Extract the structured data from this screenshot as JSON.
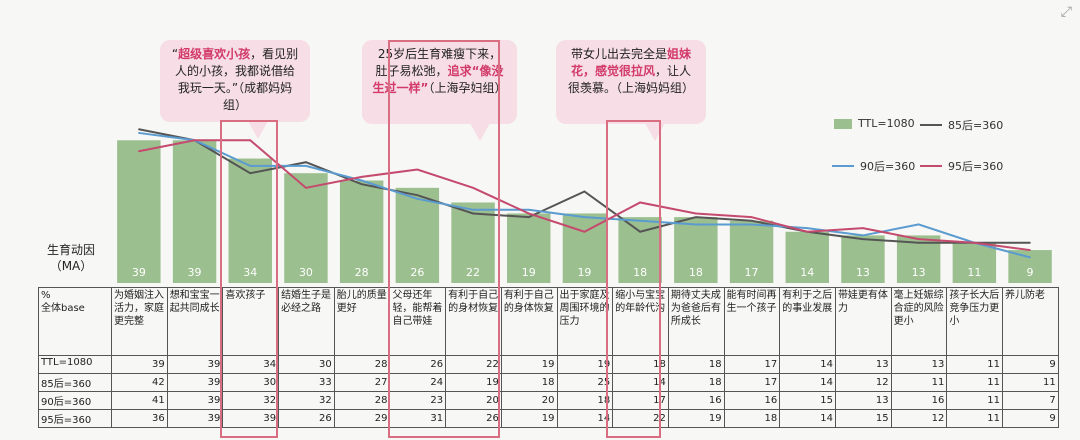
{
  "callouts": [
    {
      "parts": [
        {
          "t": "“",
          "hl": false
        },
        {
          "t": "超级喜欢小孩",
          "hl": true
        },
        {
          "t": "，看见别人的小孩，我都说借给我玩一天。”（成都妈妈组）",
          "hl": false
        }
      ]
    },
    {
      "parts": [
        {
          "t": "25岁后生育难瘦下来，肚子易松弛，",
          "hl": false
        },
        {
          "t": "追求“像没生过一样”",
          "hl": true
        },
        {
          "t": "（上海孕妇组）",
          "hl": false
        }
      ]
    },
    {
      "parts": [
        {
          "t": "带女儿出去完全是",
          "hl": false
        },
        {
          "t": "姐妹花，感觉很拉风",
          "hl": true
        },
        {
          "t": "，让人很羡慕。（上海妈妈组）",
          "hl": false
        }
      ]
    }
  ],
  "y_axis_label": "生育动因\n（MA）",
  "table_corner": "%\n全体base",
  "corner_icon": "expand-icon",
  "colors": {
    "ttl": "#9cbf8f",
    "s85": "#555555",
    "s90": "#5a9bd0",
    "s95": "#c44a6e",
    "frame": "#d96e83",
    "callout": "#f6dde6"
  },
  "chart_data": {
    "type": "bar",
    "categories": [
      "为婚姻注入活力，家庭更完整",
      "想和宝宝一起共同成长",
      "喜欢孩子",
      "结婚生子是必经之路",
      "胎儿的质量更好",
      "父母还年轻，能帮着自己带娃",
      "有利于自己的身材恢复",
      "有利于自己的身体恢复",
      "出于家庭及周围环境的压力",
      "缩小与宝宝的年龄代沟",
      "期待丈夫成为爸爸后有所成长",
      "能有时间再生一个孩子",
      "有利于之后的事业发展",
      "带娃更有体力",
      "毫上妊娠综合症的风险更小",
      "孩子长大后竞争压力更小",
      "养儿防老"
    ],
    "legend": [
      "TTL=1080",
      "85后=360",
      "90后=360",
      "95后=360"
    ],
    "series": [
      {
        "name": "TTL=1080",
        "kind": "bar",
        "values": [
          39,
          39,
          34,
          30,
          28,
          26,
          22,
          19,
          19,
          18,
          18,
          17,
          14,
          13,
          13,
          11,
          9
        ]
      },
      {
        "name": "85后=360",
        "kind": "line",
        "values": [
          42,
          39,
          30,
          33,
          27,
          24,
          19,
          18,
          25,
          14,
          18,
          17,
          14,
          12,
          11,
          11,
          11
        ]
      },
      {
        "name": "90后=360",
        "kind": "line",
        "values": [
          41,
          39,
          32,
          32,
          28,
          23,
          20,
          20,
          18,
          17,
          16,
          16,
          15,
          13,
          16,
          11,
          7
        ]
      },
      {
        "name": "95后=360",
        "kind": "line",
        "values": [
          36,
          39,
          39,
          26,
          29,
          31,
          26,
          19,
          14,
          22,
          19,
          18,
          14,
          15,
          12,
          11,
          9
        ]
      }
    ],
    "ylim": [
      0,
      50
    ],
    "legend_position": "top-right"
  }
}
